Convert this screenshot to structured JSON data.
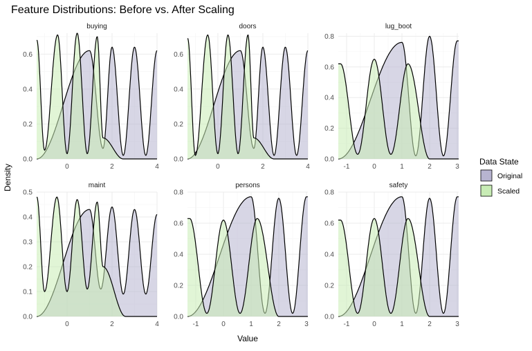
{
  "chart_data": {
    "type": "area",
    "title": "Feature Distributions: Before vs. After Scaling",
    "xlabel": "Value",
    "ylabel": "Density",
    "grid": true,
    "legend": {
      "title": "Data State",
      "placement": "right",
      "entries": [
        {
          "name": "Original",
          "color": "#b7b4d0"
        },
        {
          "name": "Scaled",
          "color": "#c8ecb5"
        }
      ]
    },
    "colors": {
      "Original": "#b7b4d0",
      "Scaled": "#c8ecb5",
      "line": "#000000"
    },
    "panels": [
      {
        "name": "buying",
        "xlim": [
          -1.35,
          4.0
        ],
        "ylim": [
          0,
          0.72
        ],
        "x_ticks": [
          0,
          2,
          4
        ],
        "x_tick_labels": [
          "0",
          "2",
          "4"
        ],
        "y_ticks": [
          0.0,
          0.2,
          0.4,
          0.6
        ],
        "y_tick_labels": [
          "0.0",
          "0.2",
          "0.4",
          "0.6"
        ],
        "series": [
          {
            "name": "Original",
            "x": [
              -1.35,
              1.0,
              1.6,
              2.0,
              2.5,
              3.0,
              3.5,
              4.0
            ],
            "y": [
              0.0,
              0.62,
              0.06,
              0.64,
              0.02,
              0.64,
              0.02,
              0.62
            ]
          },
          {
            "name": "Scaled",
            "x": [
              -1.34,
              -1.0,
              -0.42,
              0.0,
              0.45,
              0.9,
              1.34,
              1.6,
              2.5
            ],
            "y": [
              0.68,
              0.05,
              0.71,
              0.03,
              0.72,
              0.03,
              0.7,
              0.12,
              0.0
            ]
          }
        ]
      },
      {
        "name": "doors",
        "xlim": [
          -1.35,
          4.0
        ],
        "ylim": [
          0,
          0.72
        ],
        "x_ticks": [
          0,
          2,
          4
        ],
        "x_tick_labels": [
          "0",
          "2",
          "4"
        ],
        "y_ticks": [
          0.0,
          0.2,
          0.4,
          0.6
        ],
        "y_tick_labels": [
          "0.0",
          "0.2",
          "0.4",
          "0.6"
        ],
        "series": [
          {
            "name": "Original",
            "x": [
              -1.35,
              1.0,
              1.6,
              2.0,
              2.5,
              3.0,
              3.5,
              4.0
            ],
            "y": [
              0.0,
              0.62,
              0.06,
              0.64,
              0.02,
              0.64,
              0.02,
              0.62
            ]
          },
          {
            "name": "Scaled",
            "x": [
              -1.34,
              -1.0,
              -0.45,
              0.0,
              0.45,
              0.9,
              1.34,
              1.6,
              2.5
            ],
            "y": [
              0.69,
              0.02,
              0.71,
              0.03,
              0.71,
              0.03,
              0.71,
              0.12,
              0.0
            ]
          }
        ]
      },
      {
        "name": "lug_boot",
        "xlim": [
          -1.3,
          3.05
        ],
        "ylim": [
          0,
          0.82
        ],
        "x_ticks": [
          -1,
          0,
          1,
          2,
          3
        ],
        "x_tick_labels": [
          "-1",
          "0",
          "1",
          "2",
          "3"
        ],
        "y_ticks": [
          0.0,
          0.2,
          0.4,
          0.6,
          0.8
        ],
        "y_tick_labels": [
          "0.0",
          "0.2",
          "0.4",
          "0.6",
          "0.8"
        ],
        "series": [
          {
            "name": "Original",
            "x": [
              -1.3,
              1.0,
              1.5,
              2.0,
              2.5,
              3.0
            ],
            "y": [
              0.0,
              0.76,
              0.02,
              0.8,
              0.02,
              0.77
            ]
          },
          {
            "name": "Scaled",
            "x": [
              -1.22,
              -0.6,
              0.0,
              0.6,
              1.22,
              2.0
            ],
            "y": [
              0.62,
              0.03,
              0.65,
              0.03,
              0.62,
              0.0
            ]
          }
        ]
      },
      {
        "name": "maint",
        "xlim": [
          -1.35,
          4.0
        ],
        "ylim": [
          0,
          0.5
        ],
        "x_ticks": [
          0,
          2,
          4
        ],
        "x_tick_labels": [
          "0",
          "2",
          "4"
        ],
        "y_ticks": [
          0.0,
          0.1,
          0.2,
          0.3,
          0.4,
          0.5
        ],
        "y_tick_labels": [
          "0.0",
          "0.1",
          "0.2",
          "0.3",
          "0.4",
          "0.5"
        ],
        "series": [
          {
            "name": "Original",
            "x": [
              -1.35,
              1.0,
              1.5,
              2.0,
              2.5,
              3.0,
              3.5,
              4.0
            ],
            "y": [
              0.0,
              0.43,
              0.11,
              0.44,
              0.09,
              0.43,
              0.09,
              0.41
            ]
          },
          {
            "name": "Scaled",
            "x": [
              -1.34,
              -1.0,
              -0.45,
              0.0,
              0.45,
              0.9,
              1.34,
              1.6,
              2.6
            ],
            "y": [
              0.48,
              0.1,
              0.48,
              0.1,
              0.47,
              0.11,
              0.46,
              0.2,
              0.0
            ]
          }
        ]
      },
      {
        "name": "persons",
        "xlim": [
          -1.3,
          3.05
        ],
        "ylim": [
          0,
          0.8
        ],
        "x_ticks": [
          -1,
          0,
          1,
          2,
          3
        ],
        "x_tick_labels": [
          "-1",
          "0",
          "1",
          "2",
          "3"
        ],
        "y_ticks": [
          0.0,
          0.2,
          0.4,
          0.6,
          0.8
        ],
        "y_tick_labels": [
          "0.0",
          "0.2",
          "0.4",
          "0.6",
          "0.8"
        ],
        "series": [
          {
            "name": "Original",
            "x": [
              -1.3,
              1.0,
              1.5,
              2.0,
              2.5,
              3.0
            ],
            "y": [
              0.0,
              0.77,
              0.02,
              0.76,
              0.02,
              0.77
            ]
          },
          {
            "name": "Scaled",
            "x": [
              -1.22,
              -0.6,
              0.0,
              0.6,
              1.22,
              2.0
            ],
            "y": [
              0.63,
              0.02,
              0.62,
              0.02,
              0.63,
              0.0
            ]
          }
        ]
      },
      {
        "name": "safety",
        "xlim": [
          -1.3,
          3.05
        ],
        "ylim": [
          0,
          0.8
        ],
        "x_ticks": [
          -1,
          0,
          1,
          2,
          3
        ],
        "x_tick_labels": [
          "-1",
          "0",
          "1",
          "2",
          "3"
        ],
        "y_ticks": [
          0.0,
          0.2,
          0.4,
          0.6,
          0.8
        ],
        "y_tick_labels": [
          "0.0",
          "0.2",
          "0.4",
          "0.6",
          "0.8"
        ],
        "series": [
          {
            "name": "Original",
            "x": [
              -1.3,
              1.0,
              1.5,
              2.0,
              2.5,
              3.0
            ],
            "y": [
              0.0,
              0.77,
              0.02,
              0.76,
              0.02,
              0.77
            ]
          },
          {
            "name": "Scaled",
            "x": [
              -1.22,
              -0.6,
              0.0,
              0.6,
              1.22,
              2.0
            ],
            "y": [
              0.62,
              0.02,
              0.63,
              0.02,
              0.63,
              0.0
            ]
          }
        ]
      }
    ]
  }
}
